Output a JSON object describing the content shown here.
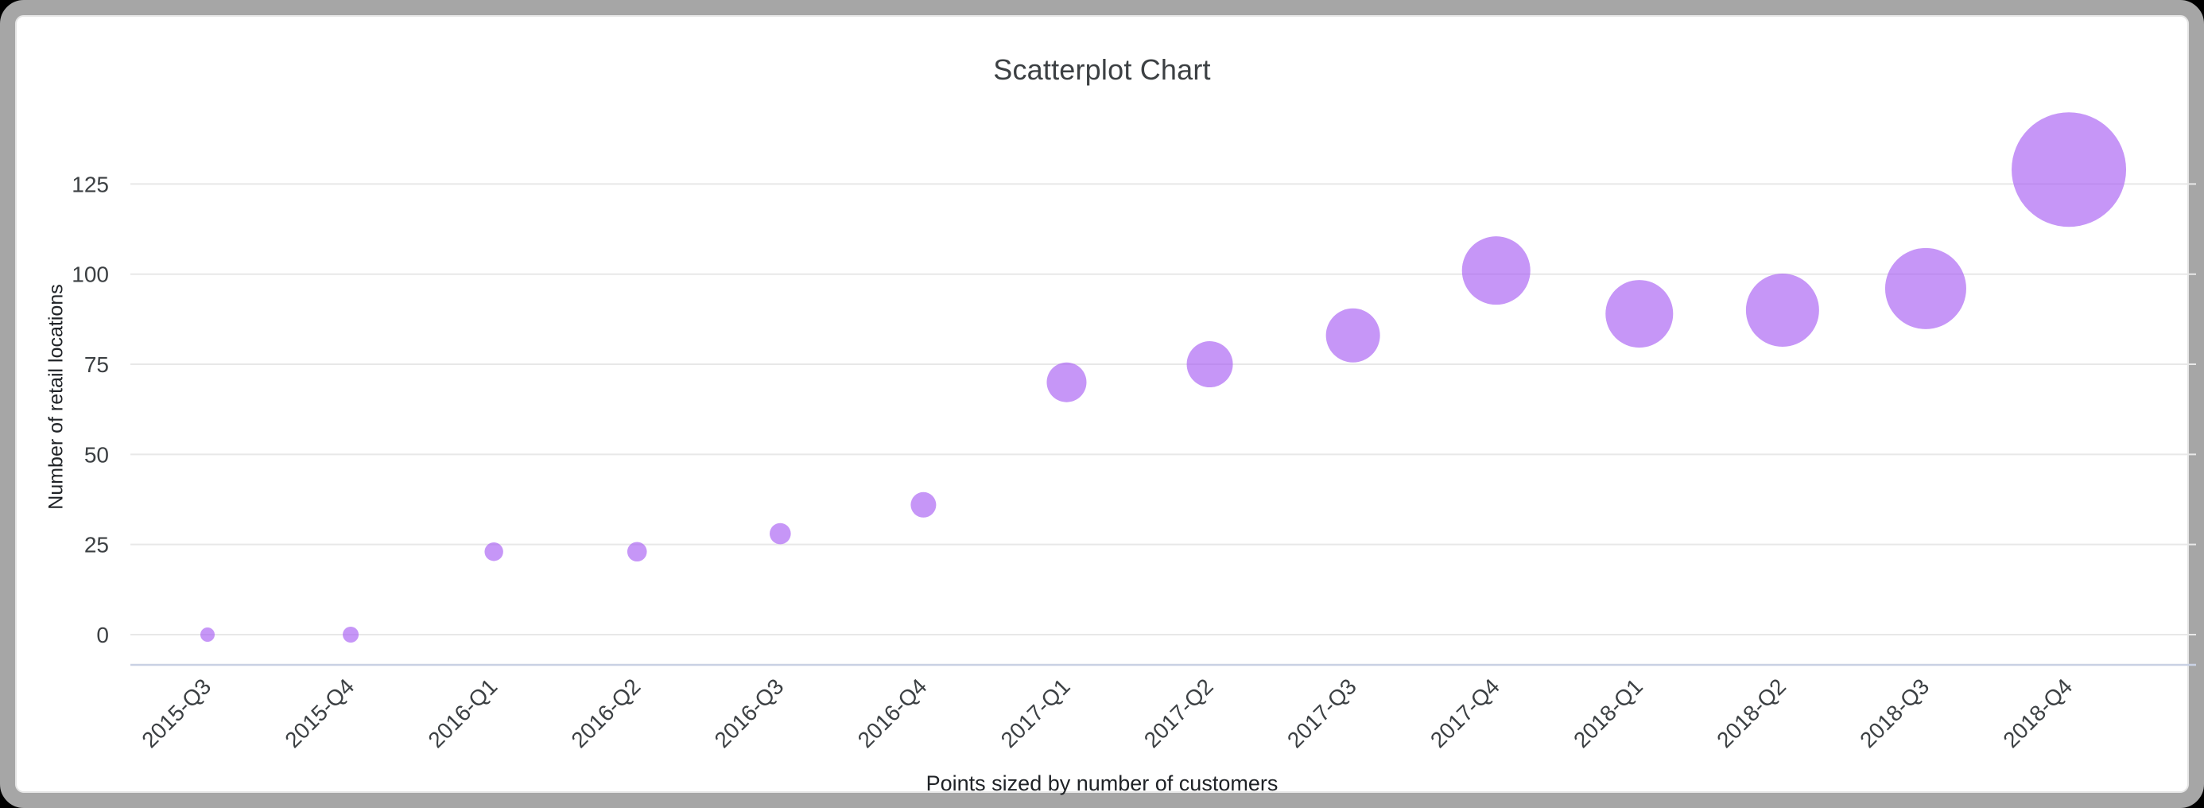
{
  "window": {
    "background": "#000000",
    "card_background": "#ffffff",
    "card_border_color": "#a6a6a6"
  },
  "chart_data": {
    "type": "scatter",
    "title": "Scatterplot Chart",
    "legend": "none",
    "grid": true,
    "x_axis": {
      "title": "Points sized by number of customers",
      "tick_rotation_deg": -45
    },
    "y_axis": {
      "title": "Number of retail locations",
      "ticks": [
        0,
        25,
        50,
        75,
        100,
        125
      ],
      "range": [
        0,
        137
      ]
    },
    "series": [
      {
        "name": "Number of retail locations",
        "sized_by": "number of customers",
        "points": [
          {
            "category": "2015-Q3",
            "value": 0,
            "radius_px": 9
          },
          {
            "category": "2015-Q4",
            "value": 0,
            "radius_px": 10
          },
          {
            "category": "2016-Q1",
            "value": 23,
            "radius_px": 11.7
          },
          {
            "category": "2016-Q2",
            "value": 23,
            "radius_px": 12.3
          },
          {
            "category": "2016-Q3",
            "value": 28,
            "radius_px": 13.3
          },
          {
            "category": "2016-Q4",
            "value": 36,
            "radius_px": 16
          },
          {
            "category": "2017-Q1",
            "value": 70,
            "radius_px": 25
          },
          {
            "category": "2017-Q2",
            "value": 75,
            "radius_px": 29
          },
          {
            "category": "2017-Q3",
            "value": 83,
            "radius_px": 34
          },
          {
            "category": "2017-Q4",
            "value": 101,
            "radius_px": 43
          },
          {
            "category": "2018-Q1",
            "value": 89,
            "radius_px": 42.5
          },
          {
            "category": "2018-Q2",
            "value": 90,
            "radius_px": 46
          },
          {
            "category": "2018-Q3",
            "value": 96,
            "radius_px": 51
          },
          {
            "category": "2018-Q4",
            "value": 129,
            "radius_px": 72
          }
        ]
      }
    ],
    "colors": {
      "point": "#a85ef3",
      "point_opacity": 0.65,
      "gridline": "#e8e8e8",
      "baseline": "#c9d1e4",
      "tick_label": "#3c4043",
      "axis_title": "#202327",
      "title": "#3c4043"
    }
  }
}
